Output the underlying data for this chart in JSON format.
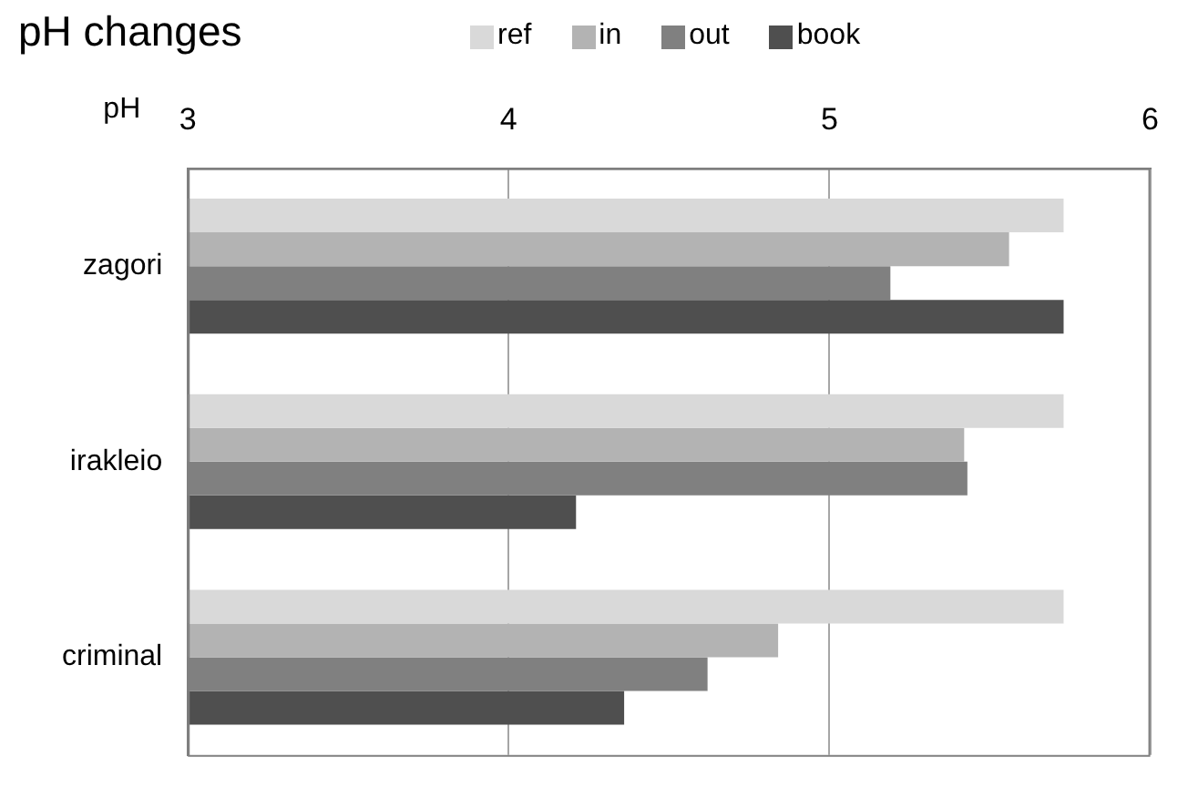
{
  "chart_data": {
    "type": "bar",
    "orientation": "horizontal",
    "title": "pH changes",
    "xlabel": "pH",
    "categories": [
      "zagori",
      "irakleio",
      "criminal"
    ],
    "series": [
      {
        "name": "ref",
        "color": "#d9d9d9",
        "values": [
          5.73,
          5.73,
          5.73
        ]
      },
      {
        "name": "in",
        "color": "#b3b3b3",
        "values": [
          5.56,
          5.42,
          4.84
        ]
      },
      {
        "name": "out",
        "color": "#808080",
        "values": [
          5.19,
          5.43,
          4.62
        ]
      },
      {
        "name": "book",
        "color": "#4f4f4f",
        "values": [
          5.73,
          4.21,
          4.36
        ]
      }
    ],
    "xlim": [
      3,
      6
    ],
    "xticks": [
      3,
      4,
      5,
      6
    ],
    "grid": "x",
    "legend": "top"
  }
}
